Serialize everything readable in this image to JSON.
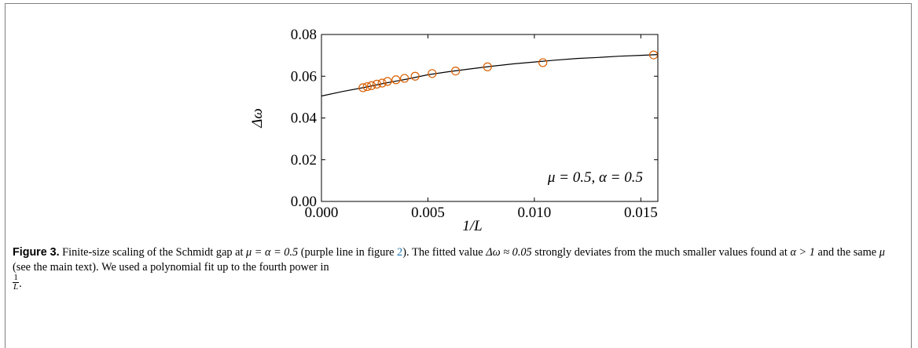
{
  "chart_data": {
    "type": "scatter",
    "xlabel": "1/L",
    "ylabel": "Δω",
    "xlim": [
      0,
      0.0158
    ],
    "ylim": [
      0,
      0.08
    ],
    "xticks": [
      0.0,
      0.005,
      0.01,
      0.015
    ],
    "xtick_labels": [
      "0.000",
      "0.005",
      "0.010",
      "0.015"
    ],
    "yticks": [
      0.0,
      0.02,
      0.04,
      0.06,
      0.08
    ],
    "ytick_labels": [
      "0.00",
      "0.02",
      "0.04",
      "0.06",
      "0.08"
    ],
    "annotation": "μ = 0.5, α = 0.5",
    "marker_color": "#d95f02",
    "fit_color": "#000000",
    "grid": false,
    "series": [
      {
        "marker": "open-circle",
        "x": [
          0.00195,
          0.00215,
          0.00235,
          0.0026,
          0.00285,
          0.0031,
          0.0035,
          0.0039,
          0.0044,
          0.0052,
          0.0063,
          0.0078,
          0.0104,
          0.0156
        ],
        "y": [
          0.0545,
          0.055,
          0.0555,
          0.0562,
          0.0567,
          0.0575,
          0.0583,
          0.059,
          0.06,
          0.0613,
          0.0625,
          0.0645,
          0.0665,
          0.0702
        ]
      },
      {
        "style": "line",
        "x": [
          0.0,
          0.001,
          0.002,
          0.003,
          0.004,
          0.005,
          0.006,
          0.007,
          0.008,
          0.009,
          0.01,
          0.011,
          0.012,
          0.013,
          0.014,
          0.015,
          0.0158
        ],
        "y": [
          0.0505,
          0.0527,
          0.0546,
          0.0567,
          0.0586,
          0.0607,
          0.0622,
          0.0635,
          0.0648,
          0.0659,
          0.0668,
          0.0677,
          0.0685,
          0.069,
          0.0696,
          0.07,
          0.0704
        ]
      }
    ]
  },
  "caption": {
    "label": "Figure 3.",
    "t1": " Finite-size scaling of the Schmidt gap at ",
    "m1": "μ = α = 0.5",
    "t2": " (purple line in figure ",
    "ref": "2",
    "t3": "). The fitted value ",
    "m2": "Δω ≈ 0.05",
    "t4": " strongly deviates from the much smaller values found at ",
    "m3": "α > 1",
    "t5": " and the same ",
    "m4": "μ",
    "t6": " (see the main text). We used a polynomial fit up to the fourth power in",
    "frac_num": "1",
    "frac_den": "L",
    "t7": "."
  }
}
